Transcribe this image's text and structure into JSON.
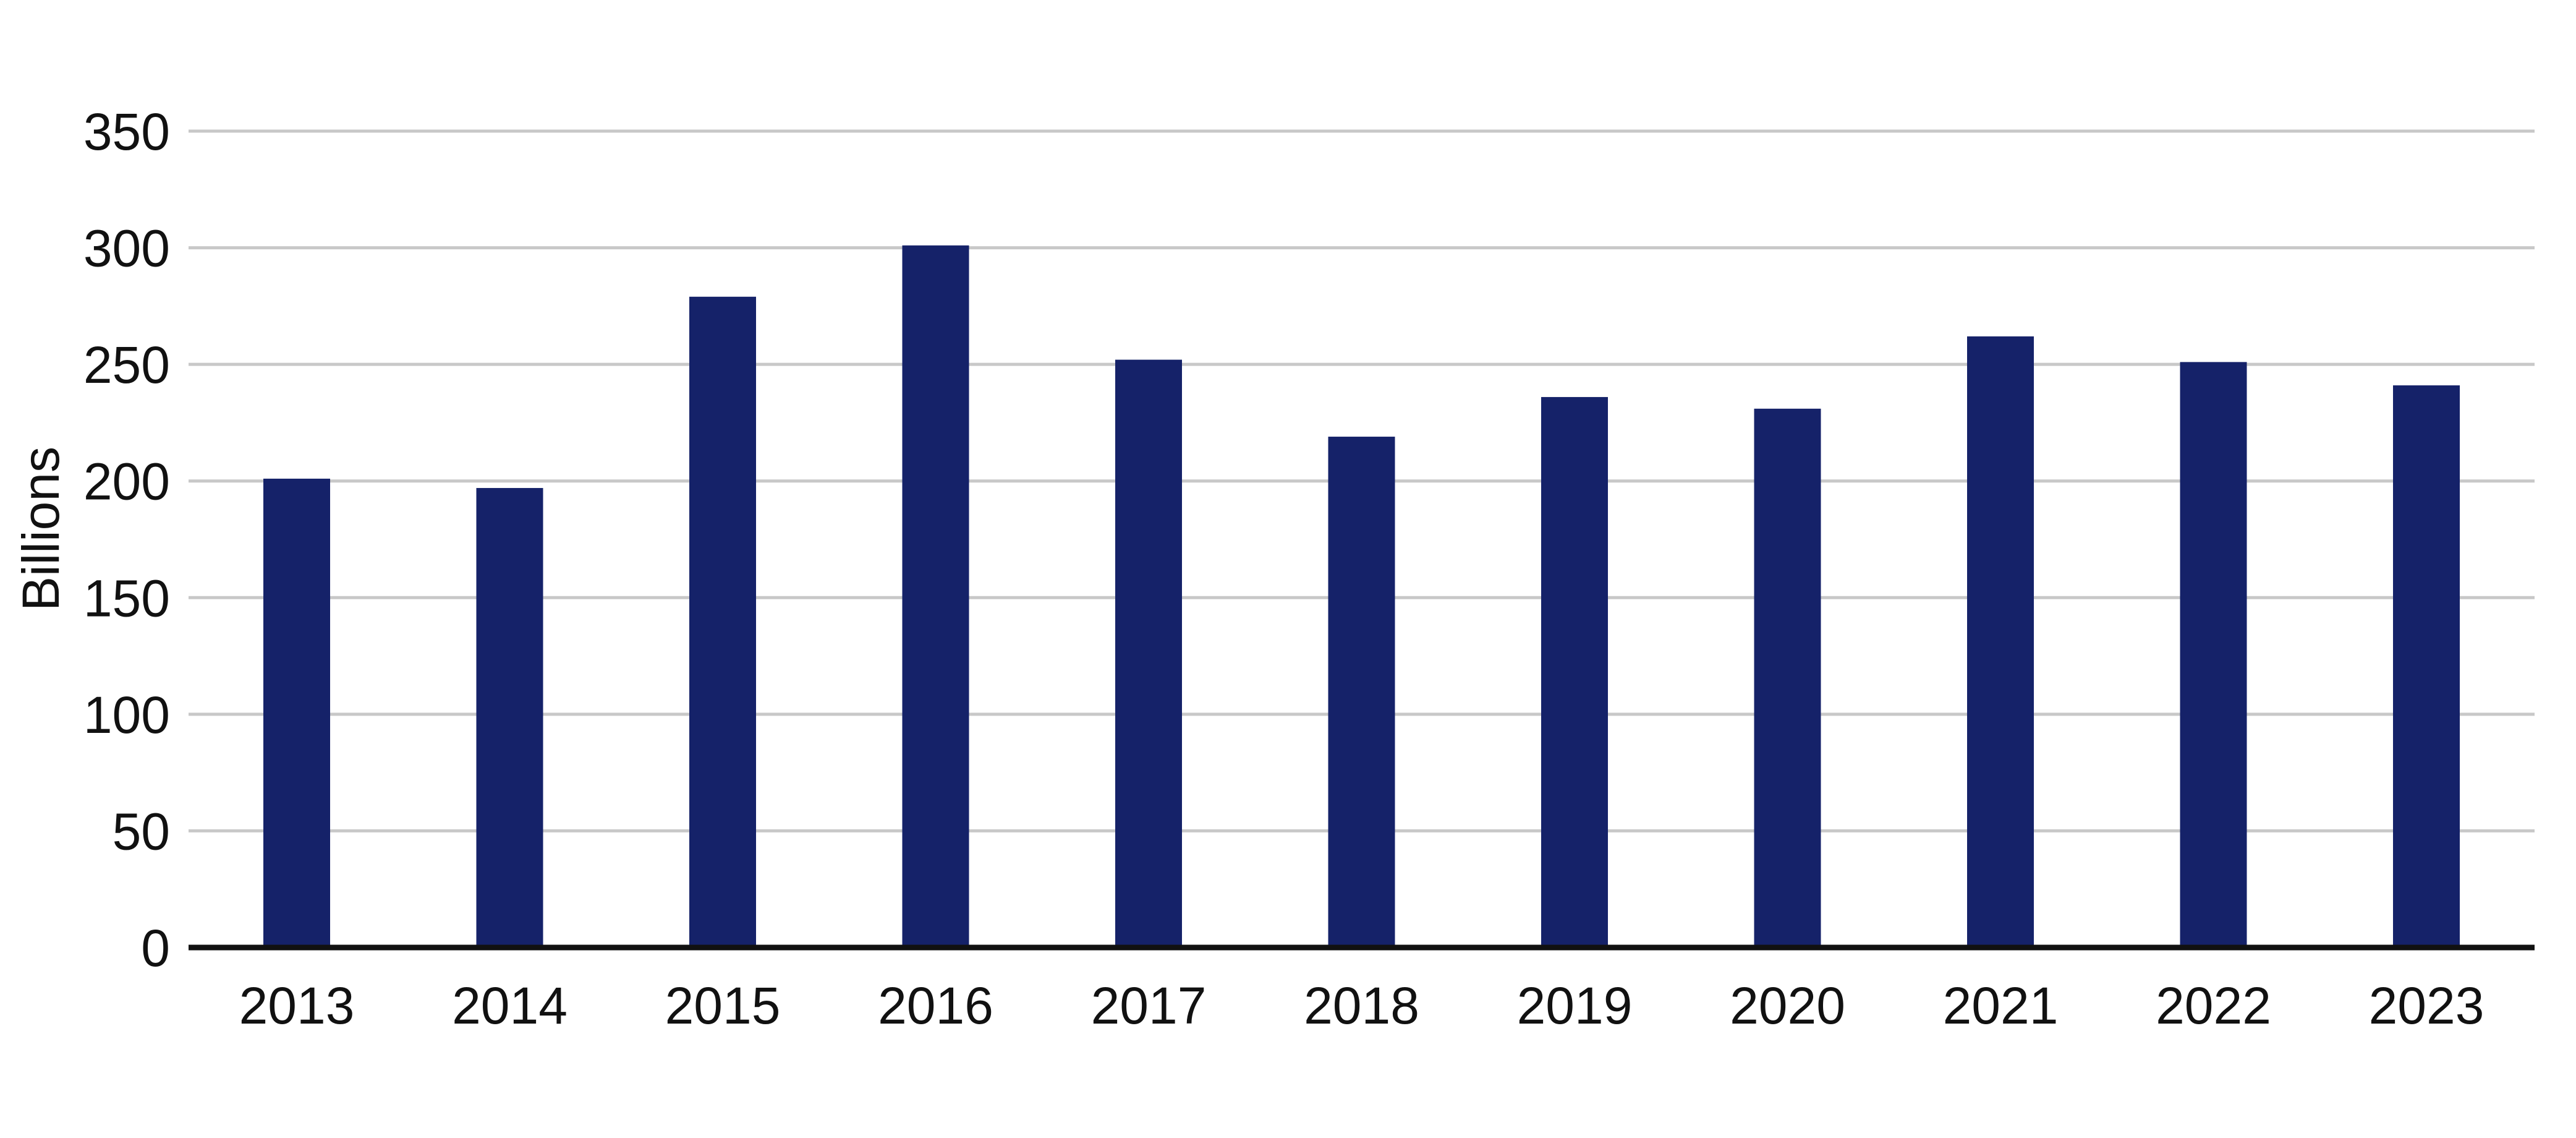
{
  "chart_data": {
    "type": "bar",
    "title": "",
    "xlabel": "",
    "ylabel": "Billions",
    "categories": [
      "2013",
      "2014",
      "2015",
      "2016",
      "2017",
      "2018",
      "2019",
      "2020",
      "2021",
      "2022",
      "2023"
    ],
    "series": [
      {
        "values": [
          201,
          197,
          279,
          301,
          252,
          219,
          236,
          231,
          262,
          251,
          241
        ]
      }
    ],
    "ylim": [
      0,
      350
    ],
    "yticks": [
      0,
      50,
      100,
      150,
      200,
      250,
      300,
      350
    ],
    "ytick_labels": [
      "0",
      "50",
      "100",
      "150",
      "200",
      "250",
      "300",
      "350"
    ],
    "grid": true,
    "legend": "none",
    "colors": {
      "bar": "#152269",
      "grid": "#c8c8c8",
      "axis": "#111111"
    }
  }
}
